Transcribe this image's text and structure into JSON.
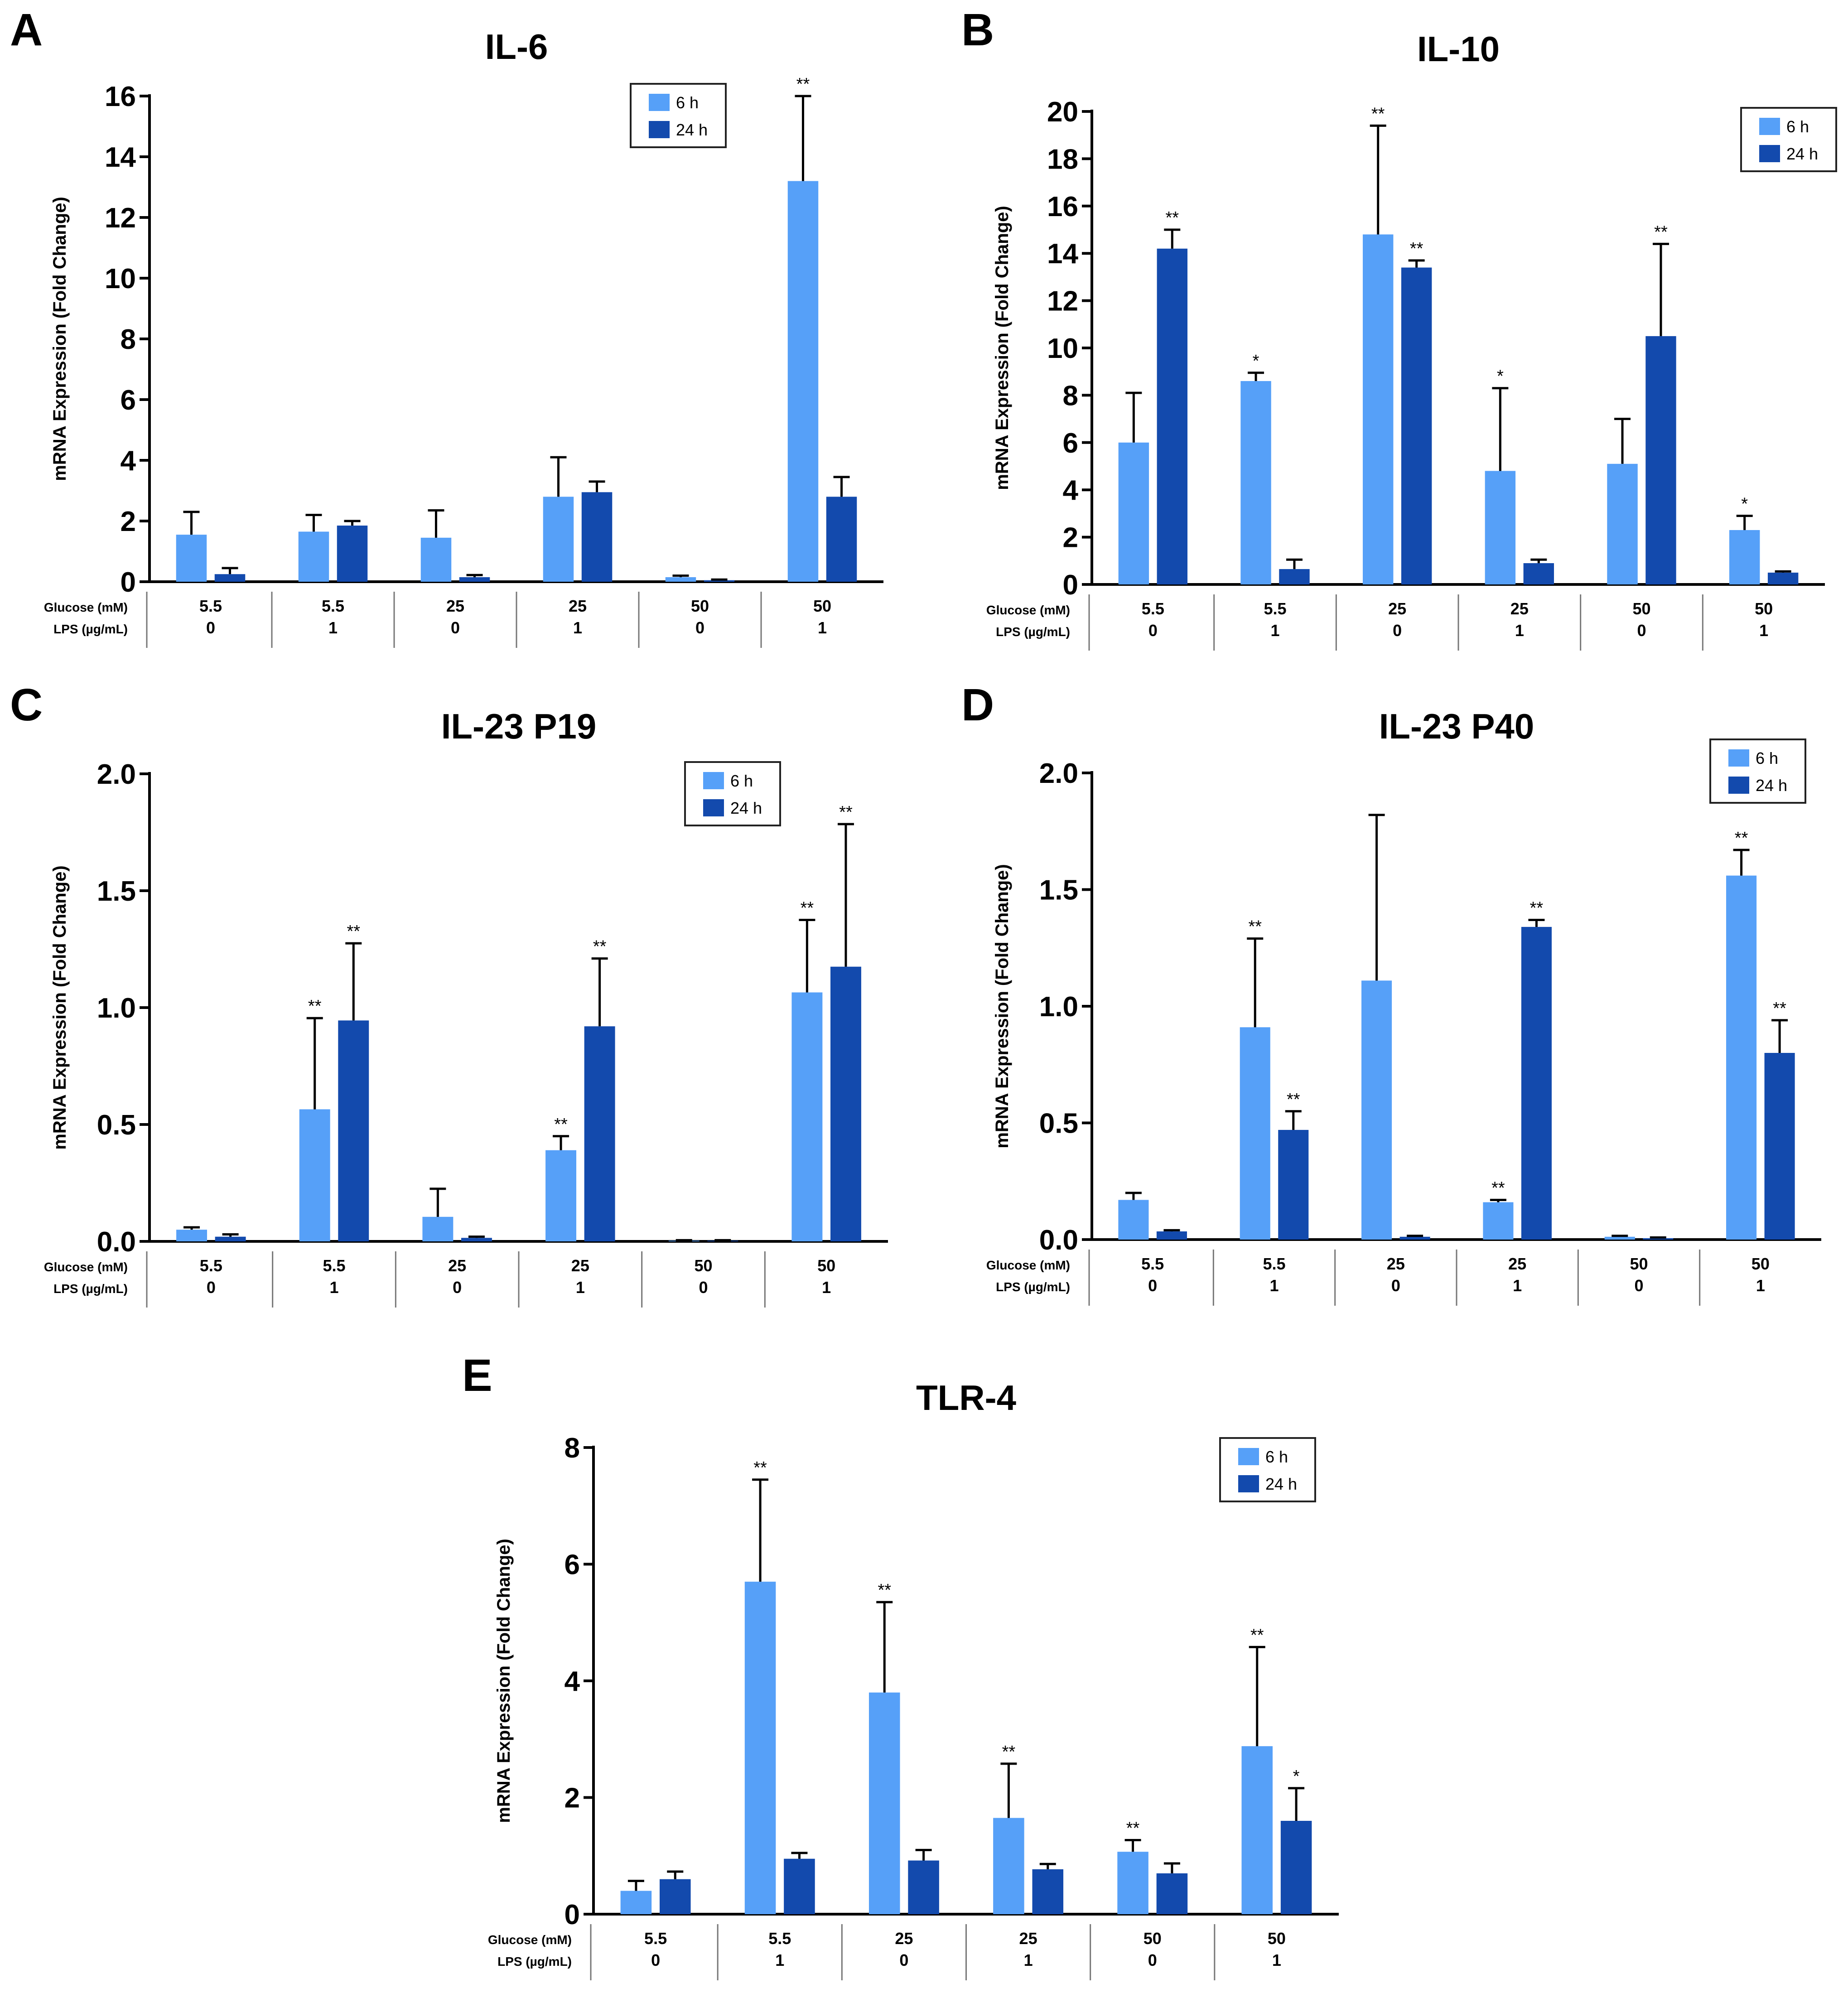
{
  "figure": {
    "colors": {
      "h6": "#56a0f8",
      "h24": "#134aad",
      "axis": "#000000"
    },
    "row_labels": [
      "Glucose (mM)",
      "LPS (µg/mL)"
    ],
    "groups": [
      {
        "glucose": "5.5",
        "lps": "0"
      },
      {
        "glucose": "5.5",
        "lps": "1"
      },
      {
        "glucose": "25",
        "lps": "0"
      },
      {
        "glucose": "25",
        "lps": "1"
      },
      {
        "glucose": "50",
        "lps": "0"
      },
      {
        "glucose": "50",
        "lps": "1"
      }
    ]
  },
  "chart_data": [
    {
      "panel": "A",
      "title": "IL-6",
      "type": "bar",
      "ylabel": "mRNA Expression (Fold Change)",
      "ylim": [
        0,
        16
      ],
      "yticks": [
        0,
        2,
        4,
        6,
        8,
        10,
        12,
        14,
        16
      ],
      "legend": [
        "6 h",
        "24 h"
      ],
      "legend_position": "top-right",
      "categories": [
        "5.5 / 0",
        "5.5 / 1",
        "25 / 0",
        "25 / 1",
        "50 / 0",
        "50 / 1"
      ],
      "series": [
        {
          "name": "6 h",
          "values": [
            1.55,
            1.65,
            1.45,
            2.8,
            0.15,
            13.2
          ],
          "errors": [
            0.75,
            0.55,
            0.9,
            1.3,
            0.05,
            2.8
          ],
          "sig": [
            "",
            "",
            "",
            "",
            "",
            "**"
          ]
        },
        {
          "name": "24 h",
          "values": [
            0.25,
            1.85,
            0.15,
            2.95,
            0.05,
            2.8
          ],
          "errors": [
            0.2,
            0.15,
            0.07,
            0.35,
            0.02,
            0.65
          ],
          "sig": [
            "",
            "",
            "",
            "",
            "",
            ""
          ]
        }
      ]
    },
    {
      "panel": "B",
      "title": "IL-10",
      "type": "bar",
      "ylabel": "mRNA Expression (Fold Change)",
      "ylim": [
        0,
        20
      ],
      "yticks": [
        0,
        2,
        4,
        6,
        8,
        10,
        12,
        14,
        16,
        18,
        20
      ],
      "legend": [
        "6 h",
        "24 h"
      ],
      "legend_position": "top-right",
      "categories": [
        "5.5 / 0",
        "5.5 / 1",
        "25 / 0",
        "25 / 1",
        "50 / 0",
        "50 / 1"
      ],
      "series": [
        {
          "name": "6 h",
          "values": [
            6.0,
            8.6,
            14.8,
            4.8,
            5.1,
            2.3
          ],
          "errors": [
            2.1,
            0.35,
            4.6,
            3.5,
            1.9,
            0.6
          ],
          "sig": [
            "",
            "*",
            "**",
            "*",
            "",
            "*"
          ]
        },
        {
          "name": "24 h",
          "values": [
            14.2,
            0.65,
            13.4,
            0.9,
            10.5,
            0.5
          ],
          "errors": [
            0.8,
            0.4,
            0.3,
            0.15,
            3.9,
            0.05
          ],
          "sig": [
            "**",
            "",
            "**",
            "",
            "**",
            ""
          ]
        }
      ]
    },
    {
      "panel": "C",
      "title": "IL-23 P19",
      "type": "bar",
      "ylabel": "mRNA Expression (Fold Change)",
      "ylim": [
        0,
        2.0
      ],
      "yticks": [
        0,
        0.5,
        1.0,
        1.5,
        2.0
      ],
      "tick_decimals": 1,
      "legend": [
        "6 h",
        "24 h"
      ],
      "legend_position": "top-right",
      "categories": [
        "5.5 / 0",
        "5.5 / 1",
        "25 / 0",
        "25 / 1",
        "50 / 0",
        "50 / 1"
      ],
      "series": [
        {
          "name": "6 h",
          "values": [
            0.05,
            0.565,
            0.105,
            0.39,
            0.003,
            1.065
          ],
          "errors": [
            0.01,
            0.39,
            0.12,
            0.06,
            0.002,
            0.31
          ],
          "sig": [
            "",
            "**",
            "",
            "**",
            "",
            "**"
          ]
        },
        {
          "name": "24 h",
          "values": [
            0.02,
            0.945,
            0.015,
            0.92,
            0.003,
            1.175
          ],
          "errors": [
            0.01,
            0.33,
            0.005,
            0.29,
            0.002,
            0.61
          ],
          "sig": [
            "",
            "**",
            "",
            "**",
            "",
            "**"
          ]
        }
      ]
    },
    {
      "panel": "D",
      "title": "IL-23 P40",
      "type": "bar",
      "ylabel": "mRNA Expression (Fold Change)",
      "ylim": [
        0,
        2.0
      ],
      "yticks": [
        0,
        0.5,
        1.0,
        1.5,
        2.0
      ],
      "tick_decimals": 1,
      "legend": [
        "6 h",
        "24 h"
      ],
      "legend_position": "top-right",
      "categories": [
        "5.5 / 0",
        "5.5 / 1",
        "25 / 0",
        "25 / 1",
        "50 / 0",
        "50 / 1"
      ],
      "series": [
        {
          "name": "6 h",
          "values": [
            0.17,
            0.91,
            1.11,
            0.16,
            0.012,
            1.56
          ],
          "errors": [
            0.03,
            0.38,
            0.71,
            0.01,
            0.004,
            0.11
          ],
          "sig": [
            "",
            "**",
            "",
            "**",
            "",
            "**"
          ]
        },
        {
          "name": "24 h",
          "values": [
            0.035,
            0.47,
            0.012,
            1.34,
            0.006,
            0.8
          ],
          "errors": [
            0.005,
            0.08,
            0.004,
            0.03,
            0.003,
            0.14
          ],
          "sig": [
            "",
            "**",
            "",
            "**",
            "",
            "**"
          ]
        }
      ]
    },
    {
      "panel": "E",
      "title": "TLR-4",
      "type": "bar",
      "ylabel": "mRNA Expression (Fold Change)",
      "ylim": [
        0,
        8
      ],
      "yticks": [
        0,
        2,
        4,
        6,
        8
      ],
      "legend": [
        "6 h",
        "24 h"
      ],
      "legend_position": "top-right",
      "categories": [
        "5.5 / 0",
        "5.5 / 1",
        "25 / 0",
        "25 / 1",
        "50 / 0",
        "50 / 1"
      ],
      "series": [
        {
          "name": "6 h",
          "values": [
            0.4,
            5.7,
            3.8,
            1.65,
            1.07,
            2.88
          ],
          "errors": [
            0.17,
            1.75,
            1.55,
            0.93,
            0.2,
            1.7
          ],
          "sig": [
            "",
            "**",
            "**",
            "**",
            "**",
            "**"
          ]
        },
        {
          "name": "24 h",
          "values": [
            0.6,
            0.95,
            0.92,
            0.77,
            0.7,
            1.6
          ],
          "errors": [
            0.13,
            0.1,
            0.18,
            0.09,
            0.17,
            0.56
          ],
          "sig": [
            "",
            "",
            "",
            "",
            "",
            "*"
          ]
        }
      ]
    }
  ]
}
